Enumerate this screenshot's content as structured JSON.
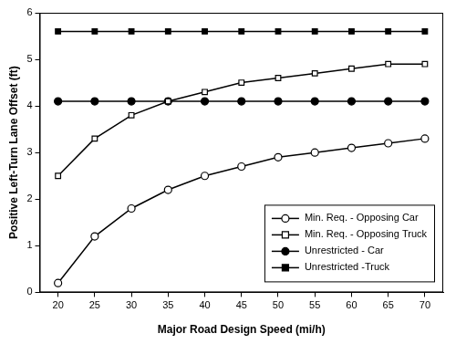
{
  "chart_data": {
    "type": "line",
    "x_label": "Major Road Design Speed (mi/h)",
    "y_label": "Positive Left-Turn Lane Offset (ft)",
    "categories": [
      "20",
      "25",
      "30",
      "35",
      "40",
      "45",
      "50",
      "55",
      "60",
      "65",
      "70"
    ],
    "series": [
      {
        "name": "Min. Req. - Opposing Car",
        "color": "#000000",
        "marker": "open circle",
        "line_style": "solid",
        "values": [
          0.2,
          1.2,
          1.8,
          2.2,
          2.5,
          2.7,
          2.9,
          3.0,
          3.1,
          3.2,
          3.3
        ]
      },
      {
        "name": "Min. Req. - Opposing Truck",
        "color": "#000000",
        "marker": "open square",
        "line_style": "solid",
        "values": [
          2.5,
          3.3,
          3.8,
          4.1,
          4.3,
          4.5,
          4.6,
          4.7,
          4.8,
          4.9,
          4.9
        ]
      },
      {
        "name": "Unrestricted - Car",
        "color": "#000000",
        "marker": "circle",
        "line_style": "solid",
        "values": [
          4.1,
          4.1,
          4.1,
          4.1,
          4.1,
          4.1,
          4.1,
          4.1,
          4.1,
          4.1,
          4.1
        ]
      },
      {
        "name": "Unrestricted -Truck",
        "color": "#000000",
        "marker": "square",
        "line_style": "solid",
        "values": [
          5.6,
          5.6,
          5.6,
          5.6,
          5.6,
          5.6,
          5.6,
          5.6,
          5.6,
          5.6,
          5.6
        ]
      }
    ],
    "ylim": [
      0,
      6
    ],
    "yticks": [
      0,
      1,
      2,
      3,
      4,
      5,
      6
    ],
    "grid": false,
    "legend": "lower right"
  }
}
